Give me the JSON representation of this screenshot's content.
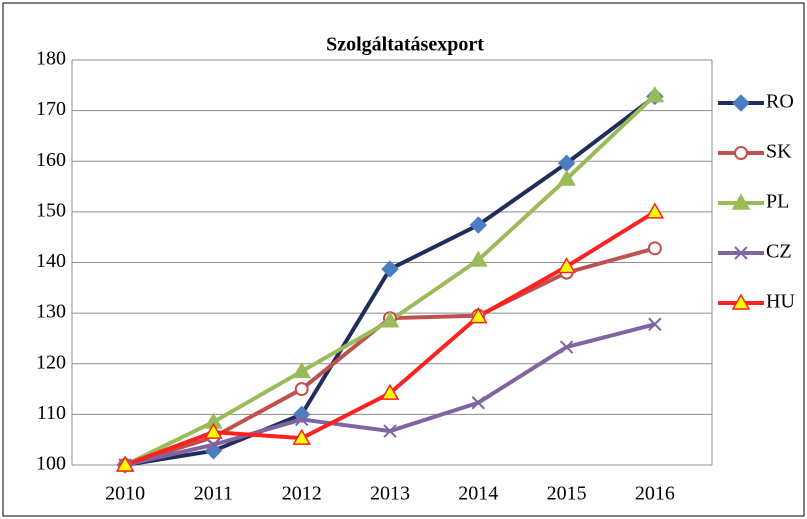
{
  "chart_data": {
    "type": "line",
    "title": "Szolgáltatásexport",
    "categories": [
      "2010",
      "2011",
      "2012",
      "2013",
      "2014",
      "2015",
      "2016"
    ],
    "series": [
      {
        "name": "RO",
        "color": "#1f2d5c",
        "marker": "diamond",
        "marker_color": "#4a7ec4",
        "values": [
          100,
          102.8,
          110,
          138.7,
          147.4,
          159.6,
          172.8
        ]
      },
      {
        "name": "SK",
        "color": "#c0504d",
        "marker": "circle",
        "marker_color": "#c0504d",
        "values": [
          100,
          105.5,
          115,
          129,
          129.5,
          138,
          142.8
        ]
      },
      {
        "name": "PL",
        "color": "#9bbb59",
        "marker": "triangle",
        "marker_color": "#9bbb59",
        "values": [
          100,
          108.5,
          118.5,
          128.5,
          140.5,
          156.5,
          173
        ]
      },
      {
        "name": "CZ",
        "color": "#8064a2",
        "marker": "x",
        "marker_color": "#8064a2",
        "values": [
          100,
          104,
          109,
          106.7,
          112.3,
          123.3,
          127.8
        ]
      },
      {
        "name": "HU",
        "color": "#ff2020",
        "marker": "triangle",
        "marker_color": "#ffff00",
        "values": [
          100,
          106.5,
          105.3,
          114.2,
          129.3,
          139.2,
          150
        ]
      }
    ],
    "ylim": [
      100,
      180
    ],
    "yticks": [
      100,
      110,
      120,
      130,
      140,
      150,
      160,
      170,
      180
    ],
    "grid": true
  }
}
